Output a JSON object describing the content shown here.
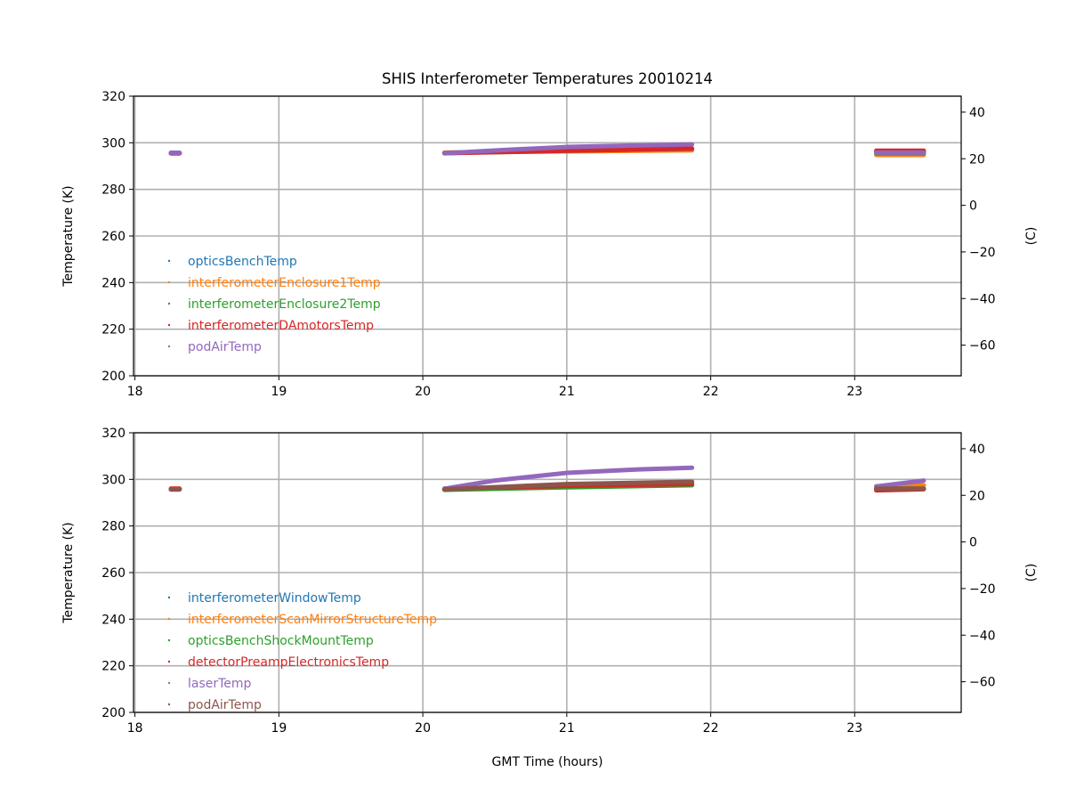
{
  "chart_data": {
    "type": "line",
    "title": "SHIS Interferometer Temperatures 20010214",
    "xlabel": "GMT Time (hours)",
    "xlim": [
      17.99,
      23.74
    ],
    "xticks": [
      18,
      19,
      20,
      21,
      22,
      23
    ],
    "grid": true,
    "panels": [
      {
        "ylabel": "Temperature (K)",
        "ylabel_right": "(C)",
        "ylim": [
          200,
          320
        ],
        "yticks": [
          200,
          220,
          240,
          260,
          280,
          300,
          320
        ],
        "yticks_right": [
          -60,
          -40,
          -20,
          0,
          20,
          40
        ],
        "legend_position": "center-left",
        "series": [
          {
            "name": "opticsBenchTemp",
            "color": "#1f77b4",
            "segments": [
              [
                [
                  18.25,
                  295.7
                ],
                [
                  18.31,
                  295.7
                ]
              ],
              [
                [
                  20.15,
                  295.7
                ],
                [
                  21,
                  296.6
                ],
                [
                  21.87,
                  297.5
                ]
              ],
              [
                [
                  23.15,
                  296
                ],
                [
                  23.48,
                  296
                ]
              ]
            ]
          },
          {
            "name": "interferometerEnclosure1Temp",
            "color": "#ff7f0e",
            "segments": [
              [
                [
                  18.25,
                  295.5
                ],
                [
                  18.31,
                  295.5
                ]
              ],
              [
                [
                  20.15,
                  295.8
                ],
                [
                  21,
                  296.3
                ],
                [
                  21.87,
                  296.8
                ]
              ],
              [
                [
                  23.15,
                  294.8
                ],
                [
                  23.48,
                  294.8
                ]
              ]
            ]
          },
          {
            "name": "interferometerEnclosure2Temp",
            "color": "#2ca02c",
            "segments": [
              [
                [
                  18.25,
                  295.5
                ],
                [
                  18.31,
                  295.5
                ]
              ],
              [
                [
                  20.15,
                  295.6
                ],
                [
                  21,
                  296.6
                ],
                [
                  21.87,
                  297.5
                ]
              ],
              [
                [
                  23.15,
                  295.5
                ],
                [
                  23.48,
                  295.5
                ]
              ]
            ]
          },
          {
            "name": "interferometerDAmotorsTemp",
            "color": "#d62728",
            "segments": [
              [
                [
                  18.25,
                  295.5
                ],
                [
                  18.31,
                  295.5
                ]
              ],
              [
                [
                  20.15,
                  295.5
                ],
                [
                  21,
                  296.6
                ],
                [
                  21.87,
                  297.5
                ]
              ],
              [
                [
                  23.15,
                  296.6
                ],
                [
                  23.48,
                  296.6
                ]
              ]
            ]
          },
          {
            "name": "podAirTemp",
            "color": "#9467bd",
            "segments": [
              [
                [
                  18.25,
                  295.7
                ],
                [
                  18.31,
                  295.7
                ]
              ],
              [
                [
                  20.15,
                  295.5
                ],
                [
                  20.6,
                  297
                ],
                [
                  21,
                  298.2
                ],
                [
                  21.5,
                  298.9
                ],
                [
                  21.87,
                  299.3
                ]
              ],
              [
                [
                  23.15,
                  295.8
                ],
                [
                  23.48,
                  295.8
                ]
              ]
            ]
          }
        ]
      },
      {
        "ylabel": "Temperature (K)",
        "ylabel_right": "(C)",
        "ylim": [
          200,
          320
        ],
        "yticks": [
          200,
          220,
          240,
          260,
          280,
          300,
          320
        ],
        "yticks_right": [
          -60,
          -40,
          -20,
          0,
          20,
          40
        ],
        "legend_position": "center-left",
        "series": [
          {
            "name": "interferometerWindowTemp",
            "color": "#1f77b4",
            "segments": [
              [
                [
                  18.25,
                  295.7
                ],
                [
                  18.31,
                  295.7
                ]
              ],
              [
                [
                  20.15,
                  295.8
                ],
                [
                  21,
                  296.9
                ],
                [
                  21.87,
                  297.8
                ]
              ],
              [
                [
                  23.15,
                  296
                ],
                [
                  23.48,
                  296
                ]
              ]
            ]
          },
          {
            "name": "interferometerScanMirrorStructureTemp",
            "color": "#ff7f0e",
            "segments": [
              [
                [
                  18.25,
                  296
                ],
                [
                  18.31,
                  296
                ]
              ],
              [
                [
                  20.15,
                  296
                ],
                [
                  21,
                  297.4
                ],
                [
                  21.87,
                  298.5
                ]
              ],
              [
                [
                  23.15,
                  297
                ],
                [
                  23.48,
                  297.5
                ]
              ]
            ]
          },
          {
            "name": "opticsBenchShockMountTemp",
            "color": "#2ca02c",
            "segments": [
              [
                [
                  18.25,
                  295.8
                ],
                [
                  18.31,
                  295.8
                ]
              ],
              [
                [
                  20.15,
                  295.5
                ],
                [
                  21,
                  296.6
                ],
                [
                  21.87,
                  297.5
                ]
              ],
              [
                [
                  23.15,
                  296
                ],
                [
                  23.48,
                  296
                ]
              ]
            ]
          },
          {
            "name": "detectorPreampElectronicsTemp",
            "color": "#d62728",
            "segments": [
              [
                [
                  18.25,
                  296
                ],
                [
                  18.31,
                  296
                ]
              ],
              [
                [
                  20.15,
                  296
                ],
                [
                  21,
                  297.2
                ],
                [
                  21.87,
                  298
                ]
              ],
              [
                [
                  23.15,
                  295.3
                ],
                [
                  23.48,
                  295.8
                ]
              ]
            ]
          },
          {
            "name": "laserTemp",
            "color": "#9467bd",
            "segments": [
              [
                [
                  18.25,
                  295.8
                ],
                [
                  18.31,
                  295.8
                ]
              ],
              [
                [
                  20.15,
                  296
                ],
                [
                  20.5,
                  299.5
                ],
                [
                  21,
                  302.8
                ],
                [
                  21.5,
                  304.3
                ],
                [
                  21.87,
                  305
                ]
              ],
              [
                [
                  23.15,
                  297
                ],
                [
                  23.48,
                  299.5
                ]
              ]
            ]
          },
          {
            "name": "podAirTemp",
            "color": "#8c564b",
            "segments": [
              [
                [
                  18.25,
                  295.7
                ],
                [
                  18.31,
                  295.7
                ]
              ],
              [
                [
                  20.15,
                  295.7
                ],
                [
                  21,
                  298
                ],
                [
                  21.87,
                  299
                ]
              ],
              [
                [
                  23.15,
                  296
                ],
                [
                  23.48,
                  296
                ]
              ]
            ]
          }
        ]
      }
    ]
  }
}
